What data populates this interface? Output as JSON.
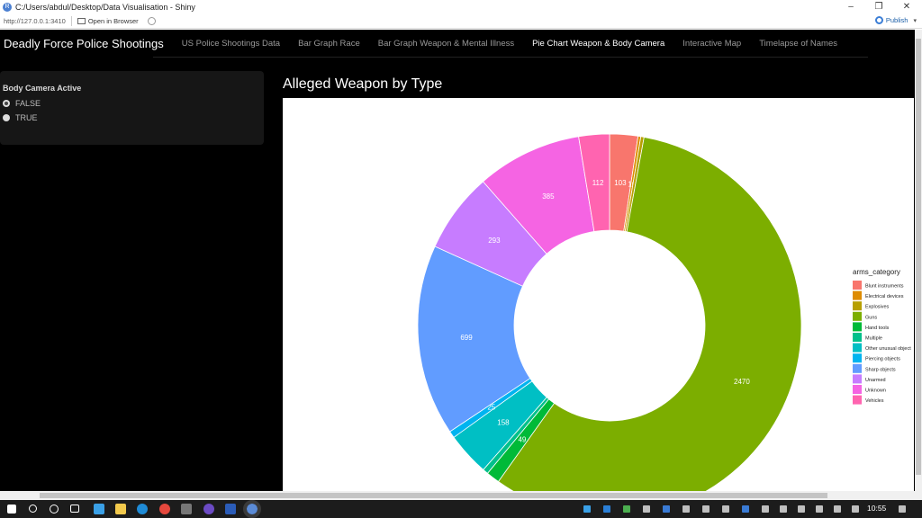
{
  "window": {
    "title": "C:/Users/abdul/Desktop/Data Visualisation - Shiny",
    "minimize_glyph": "–",
    "restore_glyph": "❐",
    "close_glyph": "✕"
  },
  "addressbar": {
    "url": "http://127.0.0.1:3410",
    "open_in_browser": "Open in Browser",
    "publish": "Publish"
  },
  "navbar": {
    "brand": "Deadly Force Police Shootings",
    "tabs": [
      "US Police Shootings Data",
      "Bar Graph Race",
      "Bar Graph Weapon & Mental Illness",
      "Pie Chart Weapon & Body Camera",
      "Interactive Map",
      "Timelapse of Names"
    ],
    "active_tab": "Pie Chart Weapon & Body Camera"
  },
  "sidebar": {
    "label": "Body Camera Active",
    "options": [
      "FALSE",
      "TRUE"
    ],
    "selected": "FALSE"
  },
  "plot": {
    "title": "Alleged Weapon by Type"
  },
  "chart_data": {
    "type": "pie",
    "donut": true,
    "legend_title": "arms_category",
    "legend_position": "right",
    "categories": [
      "Blunt instruments",
      "Electrical devices",
      "Explosives",
      "Guns",
      "Hand tools",
      "Multiple",
      "Other unusual objects",
      "Piercing objects",
      "Sharp objects",
      "Unarmed",
      "Unknown",
      "Vehicles"
    ],
    "values": [
      103,
      10,
      12,
      2470,
      49,
      20,
      158,
      25,
      699,
      293,
      385,
      112
    ],
    "labels": [
      "103",
      "10",
      "",
      "2470",
      "49",
      "",
      "158",
      "25",
      "699",
      "293",
      "385",
      "112"
    ],
    "colors": [
      "#F8766D",
      "#DE8C00",
      "#B79F00",
      "#7CAE00",
      "#00BA38",
      "#00C08B",
      "#00BFC4",
      "#00B4F0",
      "#619CFF",
      "#C77CFF",
      "#F564E3",
      "#FF64B0"
    ],
    "legend_labels": [
      "Blunt instruments",
      "Electrical devices",
      "Explosives",
      "Guns",
      "Hand tools",
      "Multiple",
      "Other unusual object",
      "Piercing objects",
      "Sharp objects",
      "Unarmed",
      "Unknown",
      "Vehicles"
    ]
  },
  "taskbar": {
    "time": "10:55"
  }
}
